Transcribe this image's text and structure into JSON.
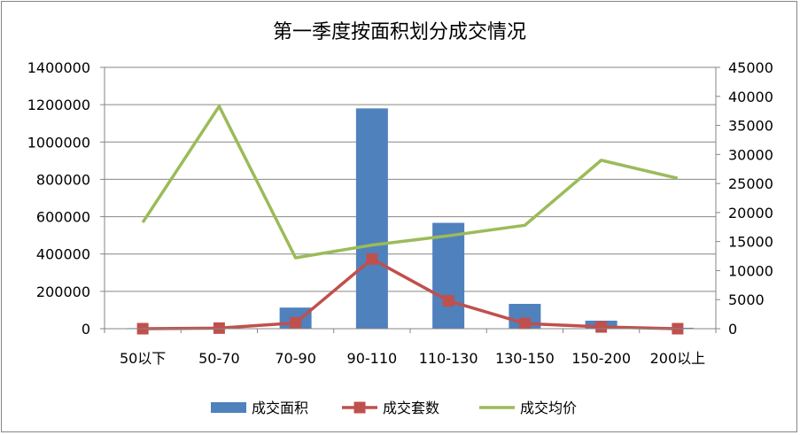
{
  "chart_data": {
    "type": "bar",
    "title": "第一季度按面积划分成交情况",
    "categories": [
      "50以下",
      "50-70",
      "70-90",
      "90-110",
      "110-130",
      "130-150",
      "150-200",
      "200以上"
    ],
    "series": [
      {
        "name": "成交面积",
        "type": "bar",
        "axis": "left",
        "color": "#4F81BD",
        "values": [
          3000,
          5000,
          113000,
          1180000,
          567000,
          133000,
          43000,
          5000
        ]
      },
      {
        "name": "成交套数",
        "type": "line",
        "axis": "right",
        "marker": "square",
        "color": "#C0504D",
        "values": [
          0,
          100,
          1000,
          12000,
          4800,
          900,
          300,
          0
        ]
      },
      {
        "name": "成交均价",
        "type": "line",
        "axis": "right",
        "color": "#9BBB59",
        "values": [
          18300,
          38300,
          12200,
          14400,
          16000,
          17800,
          29000,
          25900
        ]
      }
    ],
    "y_left": {
      "min": 0,
      "max": 1400000,
      "ticks": [
        "0",
        "200000",
        "400000",
        "600000",
        "800000",
        "1000000",
        "1200000",
        "1400000"
      ]
    },
    "y_right": {
      "min": 0,
      "max": 45000,
      "ticks": [
        "0",
        "5000",
        "10000",
        "15000",
        "20000",
        "25000",
        "30000",
        "35000",
        "40000",
        "45000"
      ]
    },
    "grid": true,
    "legend": "bottom"
  }
}
